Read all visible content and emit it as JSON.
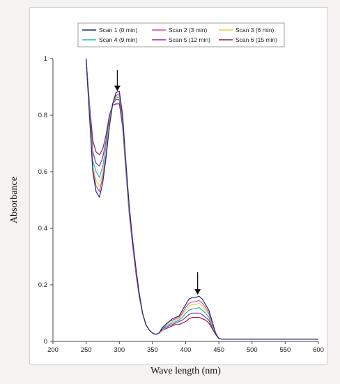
{
  "chart_data": {
    "type": "line",
    "xlabel": "Wave length (nm)",
    "ylabel": "Absorbance",
    "xlim": [
      200,
      600
    ],
    "ylim": [
      0,
      1
    ],
    "x_ticks": [
      200,
      250,
      300,
      350,
      400,
      450,
      500,
      550,
      600
    ],
    "y_ticks": [
      0,
      0.2,
      0.4,
      0.6,
      0.8,
      1
    ],
    "y_tick_labels": [
      "0",
      "0.2",
      "0.4",
      "0.6",
      "0.8",
      "1"
    ],
    "legend_position": "top-center",
    "x": [
      250,
      255,
      260,
      265,
      270,
      275,
      280,
      285,
      290,
      295,
      300,
      305,
      310,
      315,
      320,
      325,
      330,
      335,
      340,
      345,
      350,
      355,
      360,
      365,
      370,
      375,
      380,
      385,
      390,
      395,
      400,
      405,
      410,
      415,
      420,
      425,
      430,
      435,
      440,
      445,
      450,
      455,
      460,
      500,
      550,
      600
    ],
    "series": [
      {
        "name": "Scan 1 (0 min)",
        "color": "#1f2a7a",
        "values": [
          1.0,
          0.8,
          0.6,
          0.53,
          0.51,
          0.56,
          0.65,
          0.76,
          0.84,
          0.88,
          0.885,
          0.8,
          0.63,
          0.48,
          0.36,
          0.26,
          0.17,
          0.1,
          0.06,
          0.04,
          0.03,
          0.025,
          0.03,
          0.05,
          0.06,
          0.07,
          0.08,
          0.085,
          0.09,
          0.11,
          0.13,
          0.15,
          0.155,
          0.155,
          0.16,
          0.15,
          0.13,
          0.11,
          0.07,
          0.03,
          0.01,
          0.008,
          0.008,
          0.008,
          0.008,
          0.008
        ]
      },
      {
        "name": "Scan 2 (3 min)",
        "color": "#d04f9c",
        "values": [
          1.0,
          0.8,
          0.61,
          0.55,
          0.53,
          0.58,
          0.66,
          0.76,
          0.84,
          0.87,
          0.875,
          0.79,
          0.62,
          0.47,
          0.35,
          0.25,
          0.17,
          0.1,
          0.06,
          0.04,
          0.03,
          0.025,
          0.03,
          0.05,
          0.06,
          0.07,
          0.075,
          0.08,
          0.085,
          0.1,
          0.12,
          0.135,
          0.14,
          0.14,
          0.145,
          0.135,
          0.12,
          0.1,
          0.065,
          0.03,
          0.01,
          0.008,
          0.008,
          0.008,
          0.008,
          0.008
        ]
      },
      {
        "name": "Scan 3 (6 min)",
        "color": "#e0d24a",
        "values": [
          1.0,
          0.81,
          0.62,
          0.57,
          0.55,
          0.6,
          0.67,
          0.77,
          0.84,
          0.865,
          0.87,
          0.79,
          0.62,
          0.47,
          0.35,
          0.25,
          0.17,
          0.1,
          0.06,
          0.04,
          0.03,
          0.025,
          0.03,
          0.05,
          0.06,
          0.065,
          0.07,
          0.075,
          0.08,
          0.095,
          0.11,
          0.125,
          0.13,
          0.13,
          0.135,
          0.125,
          0.11,
          0.095,
          0.06,
          0.03,
          0.01,
          0.008,
          0.008,
          0.008,
          0.008,
          0.008
        ]
      },
      {
        "name": "Scan 4 (9 min)",
        "color": "#2fb3c5",
        "values": [
          1.0,
          0.82,
          0.64,
          0.6,
          0.58,
          0.62,
          0.69,
          0.78,
          0.84,
          0.86,
          0.865,
          0.78,
          0.61,
          0.46,
          0.35,
          0.25,
          0.17,
          0.1,
          0.06,
          0.04,
          0.03,
          0.025,
          0.03,
          0.045,
          0.055,
          0.06,
          0.065,
          0.07,
          0.075,
          0.085,
          0.1,
          0.11,
          0.115,
          0.115,
          0.12,
          0.11,
          0.1,
          0.085,
          0.055,
          0.03,
          0.01,
          0.008,
          0.008,
          0.008,
          0.008,
          0.008
        ]
      },
      {
        "name": "Scan 5 (12 min)",
        "color": "#7a3a9a",
        "values": [
          1.0,
          0.83,
          0.67,
          0.63,
          0.62,
          0.65,
          0.71,
          0.79,
          0.84,
          0.855,
          0.855,
          0.77,
          0.61,
          0.46,
          0.34,
          0.25,
          0.17,
          0.1,
          0.06,
          0.04,
          0.03,
          0.025,
          0.03,
          0.045,
          0.05,
          0.055,
          0.06,
          0.065,
          0.07,
          0.075,
          0.085,
          0.095,
          0.1,
          0.1,
          0.1,
          0.095,
          0.085,
          0.075,
          0.05,
          0.025,
          0.01,
          0.008,
          0.008,
          0.008,
          0.008,
          0.008
        ]
      },
      {
        "name": "Scan 6 (15 min)",
        "color": "#8a2040",
        "values": [
          1.0,
          0.84,
          0.71,
          0.67,
          0.66,
          0.68,
          0.73,
          0.8,
          0.835,
          0.84,
          0.84,
          0.76,
          0.6,
          0.45,
          0.34,
          0.24,
          0.16,
          0.1,
          0.06,
          0.04,
          0.03,
          0.025,
          0.03,
          0.04,
          0.045,
          0.05,
          0.055,
          0.06,
          0.06,
          0.065,
          0.07,
          0.08,
          0.085,
          0.085,
          0.085,
          0.08,
          0.075,
          0.065,
          0.045,
          0.025,
          0.01,
          0.008,
          0.008,
          0.008,
          0.008,
          0.008
        ]
      }
    ],
    "annotations": [
      {
        "type": "arrow-down",
        "x": 297,
        "y_top": 0.96,
        "y_tip": 0.885
      },
      {
        "type": "arrow-down",
        "x": 418,
        "y_top": 0.245,
        "y_tip": 0.165
      }
    ]
  }
}
